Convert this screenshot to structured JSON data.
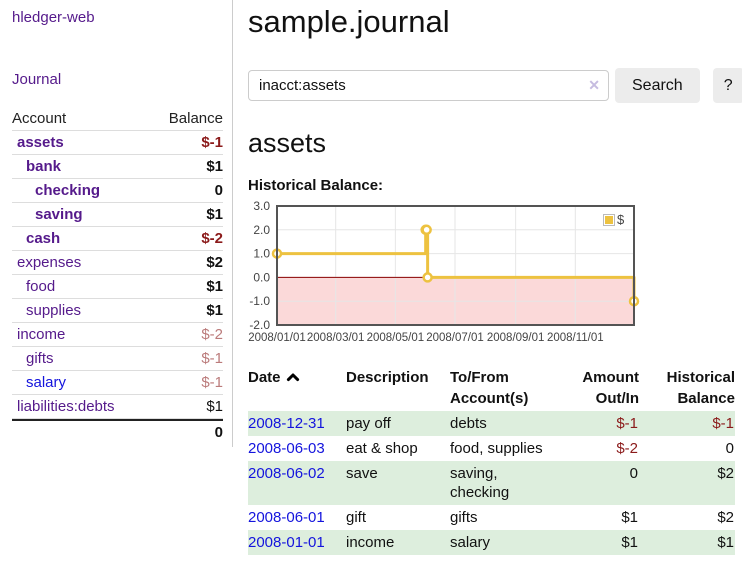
{
  "app": {
    "title": "hledger-web"
  },
  "sidebar": {
    "journal_link": "Journal",
    "accounts_table": {
      "account_header": "Account",
      "balance_header": "Balance",
      "rows": [
        {
          "name": "assets",
          "balance": "$-1"
        },
        {
          "name": "bank",
          "balance": "$1"
        },
        {
          "name": "checking",
          "balance": "0"
        },
        {
          "name": "saving",
          "balance": "$1"
        },
        {
          "name": "cash",
          "balance": "$-2"
        },
        {
          "name": "expenses",
          "balance": "$2"
        },
        {
          "name": "food",
          "balance": "$1"
        },
        {
          "name": "supplies",
          "balance": "$1"
        },
        {
          "name": "income",
          "balance": "$-2"
        },
        {
          "name": "gifts",
          "balance": "$-1"
        },
        {
          "name": "salary",
          "balance": "$-1"
        },
        {
          "name": "liabilities:debts",
          "balance": "$1"
        }
      ],
      "total": "0"
    }
  },
  "main": {
    "title": "sample.journal",
    "search": {
      "value": "inacct:assets",
      "clear_icon": "✕",
      "button": "Search",
      "help_button": "?"
    },
    "account_heading": "assets",
    "chart_label": "Historical Balance:"
  },
  "chart_data": {
    "type": "line",
    "title": "Historical Balance:",
    "series": [
      {
        "name": "$",
        "color": "#edc240",
        "step": true,
        "points": [
          [
            "2008-01-01",
            1
          ],
          [
            "2008-06-01",
            2
          ],
          [
            "2008-06-02",
            2
          ],
          [
            "2008-06-03",
            0
          ],
          [
            "2008-12-31",
            -1
          ]
        ]
      }
    ],
    "xlim": [
      "2008-01-01",
      "2008-12-31"
    ],
    "ylim": [
      -2.0,
      3.0
    ],
    "yticks": [
      3.0,
      2.0,
      1.0,
      0.0,
      -1.0,
      -2.0
    ],
    "xticks": [
      "2008/01/01",
      "2008/03/01",
      "2008/05/01",
      "2008/07/01",
      "2008/09/01",
      "2008/11/01"
    ],
    "grid": true,
    "legend_position": "top-right",
    "negative_region_color": "#fbd9d9",
    "zero_line_color": "#8b0000"
  },
  "register": {
    "headers": {
      "date": "Date",
      "description": "Description",
      "tofrom": "To/From Account(s)",
      "amount": "Amount Out/In",
      "balance": "Historical Balance"
    },
    "rows": [
      {
        "date": "2008-12-31",
        "description": "pay off",
        "accounts": "debts",
        "amount": "$-1",
        "balance": "$-1"
      },
      {
        "date": "2008-06-03",
        "description": "eat & shop",
        "accounts": "food, supplies",
        "amount": "$-2",
        "balance": "0"
      },
      {
        "date": "2008-06-02",
        "description": "save",
        "accounts": "saving, checking",
        "amount": "0",
        "balance": "$2"
      },
      {
        "date": "2008-06-01",
        "description": "gift",
        "accounts": "gifts",
        "amount": "$1",
        "balance": "$2"
      },
      {
        "date": "2008-01-01",
        "description": "income",
        "accounts": "salary",
        "amount": "$1",
        "balance": "$1"
      }
    ]
  },
  "colors": {
    "visited_link_purple": "#551a8b",
    "link_blue": "#1414dd",
    "negative_strong": "#8b1a1a",
    "negative_faded": "#bb7b7b",
    "row_stripe_green": "#ddeedd",
    "chart_line_gold": "#edc240",
    "chart_negative_region": "#fbd9d9",
    "chart_zero_line": "#8b0000",
    "button_gray": "#ececec"
  }
}
